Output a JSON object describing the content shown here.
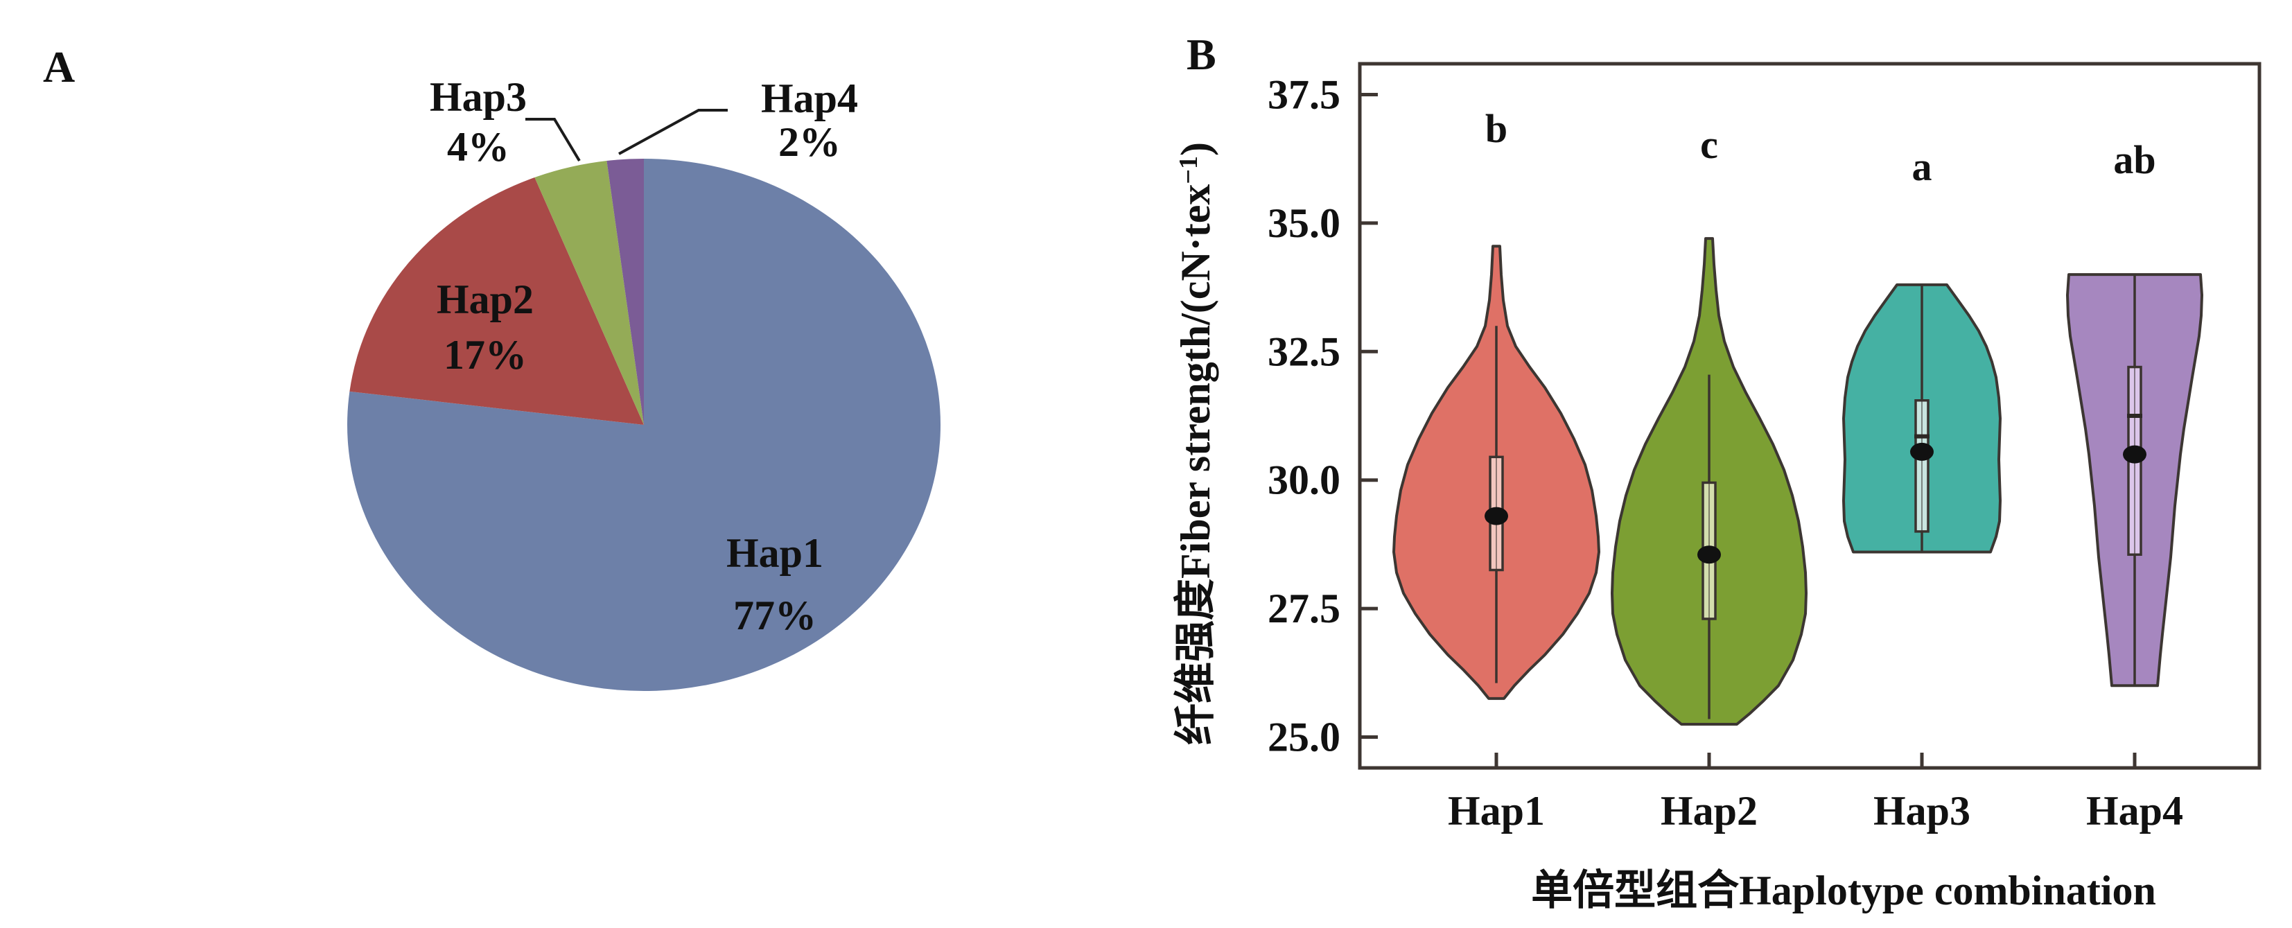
{
  "figure": {
    "panel_a_label": "A",
    "panel_b_label": "B"
  },
  "chart_data": [
    {
      "type": "pie",
      "panel": "A",
      "categories": [
        "Hap1",
        "Hap2",
        "Hap3",
        "Hap4"
      ],
      "values": [
        77,
        17,
        4,
        2
      ],
      "percent_labels": [
        "77%",
        "17%",
        "4%",
        "2%"
      ],
      "colors": [
        "#6d80a8",
        "#a94a48",
        "#94ab57",
        "#7b5c96"
      ],
      "start_angle_deg": 0,
      "direction": "clockwise",
      "labels_outside": [
        "Hap3",
        "Hap4"
      ],
      "title": ""
    },
    {
      "type": "violin",
      "panel": "B",
      "xlabel": "单倍型组合Haplotype combination",
      "ylabel": "纤维强度Fiber strength/(cN·tex⁻¹)",
      "ylabel_parts": {
        "pre": "纤维强度Fiber strength/(cN·tex",
        "sup": "−1",
        "post": ")"
      },
      "ylim": [
        24.4,
        38.1
      ],
      "yticks": [
        25.0,
        27.5,
        30.0,
        32.5,
        35.0,
        37.5
      ],
      "ytick_labels": [
        "25.0",
        "27.5",
        "30.0",
        "32.5",
        "35.0",
        "37.5"
      ],
      "categories": [
        "Hap1",
        "Hap2",
        "Hap3",
        "Hap4"
      ],
      "grid": false,
      "series": [
        {
          "name": "Hap1",
          "letter": "b",
          "color": "#df7166",
          "box_color": "#f3c7bf",
          "outline": "#3c3632",
          "violin_range": [
            25.75,
            34.55
          ],
          "whisker": [
            26.05,
            33.0
          ],
          "box": [
            28.25,
            30.45
          ],
          "median_line": null,
          "median_dot": 29.3,
          "profile": [
            [
              34.55,
              5
            ],
            [
              34.0,
              7
            ],
            [
              33.5,
              10
            ],
            [
              33.0,
              16
            ],
            [
              32.6,
              28
            ],
            [
              32.2,
              48
            ],
            [
              31.8,
              70
            ],
            [
              31.3,
              93
            ],
            [
              30.8,
              112
            ],
            [
              30.3,
              128
            ],
            [
              29.8,
              138
            ],
            [
              29.3,
              144
            ],
            [
              28.9,
              147
            ],
            [
              28.6,
              148
            ],
            [
              28.2,
              144
            ],
            [
              27.8,
              134
            ],
            [
              27.4,
              117
            ],
            [
              27.0,
              96
            ],
            [
              26.6,
              70
            ],
            [
              26.3,
              47
            ],
            [
              26.0,
              26
            ],
            [
              25.75,
              11
            ]
          ]
        },
        {
          "name": "Hap2",
          "letter": "c",
          "color": "#7c9f33",
          "box_color": "#d4deae",
          "outline": "#3c3632",
          "violin_range": [
            25.25,
            34.7
          ],
          "whisker": [
            25.35,
            32.05
          ],
          "box": [
            27.3,
            29.95
          ],
          "median_line": null,
          "median_dot": 28.55,
          "profile": [
            [
              34.7,
              5
            ],
            [
              34.2,
              7
            ],
            [
              33.7,
              10
            ],
            [
              33.2,
              14
            ],
            [
              32.7,
              22
            ],
            [
              32.2,
              35
            ],
            [
              31.7,
              53
            ],
            [
              31.2,
              73
            ],
            [
              30.7,
              92
            ],
            [
              30.2,
              108
            ],
            [
              29.7,
              120
            ],
            [
              29.2,
              129
            ],
            [
              28.7,
              135
            ],
            [
              28.2,
              139
            ],
            [
              27.8,
              140
            ],
            [
              27.4,
              139
            ],
            [
              27.0,
              133
            ],
            [
              26.5,
              121
            ],
            [
              26.0,
              100
            ],
            [
              25.7,
              78
            ],
            [
              25.45,
              58
            ],
            [
              25.25,
              40
            ]
          ]
        },
        {
          "name": "Hap3",
          "letter": "a",
          "color": "#45b1a3",
          "box_color": "#c9e6e0",
          "outline": "#3c3632",
          "violin_range": [
            28.6,
            33.8
          ],
          "whisker": [
            28.6,
            33.8
          ],
          "box": [
            29.0,
            31.55
          ],
          "median_line": 30.85,
          "median_dot": 30.55,
          "profile": [
            [
              33.8,
              36
            ],
            [
              33.5,
              52
            ],
            [
              33.2,
              68
            ],
            [
              32.9,
              82
            ],
            [
              32.6,
              93
            ],
            [
              32.3,
              101
            ],
            [
              32.0,
              107
            ],
            [
              31.6,
              111
            ],
            [
              31.2,
              113
            ],
            [
              30.8,
              112
            ],
            [
              30.4,
              111
            ],
            [
              30.0,
              112
            ],
            [
              29.6,
              113
            ],
            [
              29.2,
              112
            ],
            [
              28.9,
              107
            ],
            [
              28.6,
              99
            ]
          ]
        },
        {
          "name": "Hap4",
          "letter": "ab",
          "color": "#a687bf",
          "box_color": "#dcc6ea",
          "outline": "#3c3632",
          "violin_range": [
            26.0,
            34.0
          ],
          "whisker": [
            26.0,
            34.0
          ],
          "box": [
            28.55,
            32.2
          ],
          "median_line": 31.25,
          "median_dot": 30.5,
          "profile": [
            [
              34.0,
              95
            ],
            [
              33.6,
              97
            ],
            [
              33.2,
              96
            ],
            [
              32.8,
              93
            ],
            [
              32.4,
              88
            ],
            [
              32.0,
              83
            ],
            [
              31.5,
              77
            ],
            [
              31.0,
              71
            ],
            [
              30.5,
              66
            ],
            [
              30.0,
              62
            ],
            [
              29.5,
              58
            ],
            [
              29.0,
              55
            ],
            [
              28.5,
              52
            ],
            [
              28.0,
              48
            ],
            [
              27.5,
              44
            ],
            [
              27.0,
              40
            ],
            [
              26.6,
              37
            ],
            [
              26.3,
              35
            ],
            [
              26.0,
              33
            ]
          ]
        }
      ]
    }
  ]
}
